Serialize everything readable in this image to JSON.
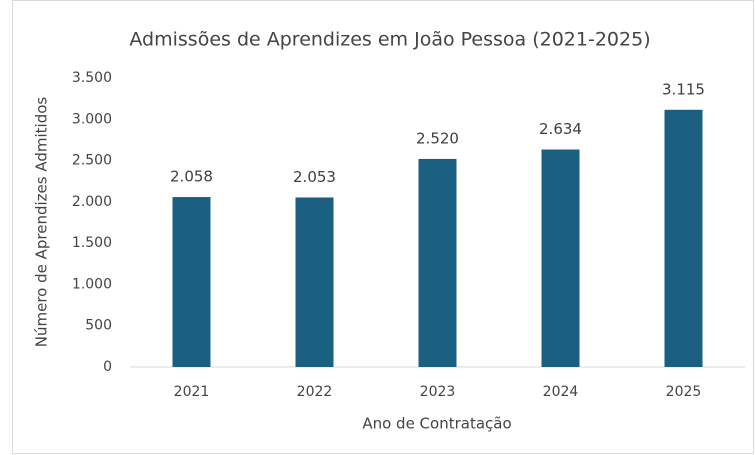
{
  "chart_data": {
    "type": "bar",
    "title": "Admissões de Aprendizes em João Pessoa (2021-2025)",
    "x_label": "Ano de Contratação",
    "y_label": "Número de Aprendizes Admitidos",
    "categories": [
      "2021",
      "2022",
      "2023",
      "2024",
      "2025"
    ],
    "values": [
      2058,
      2053,
      2520,
      2634,
      3115
    ],
    "value_labels": [
      "2.058",
      "2.053",
      "2.520",
      "2.634",
      "3.115"
    ],
    "color": "#1a5f80",
    "ylim": [
      0,
      3500
    ],
    "yticks": [
      0,
      500,
      {
        "value": 1000,
        "label": "1.000"
      },
      {
        "value": 1500,
        "label": "1.500"
      },
      {
        "value": 2000,
        "label": "2.000"
      },
      {
        "value": 2500,
        "label": "2.500"
      },
      {
        "value": 3000,
        "label": "3.000"
      },
      {
        "value": 3500,
        "label": "3.500"
      }
    ],
    "grid": false
  }
}
